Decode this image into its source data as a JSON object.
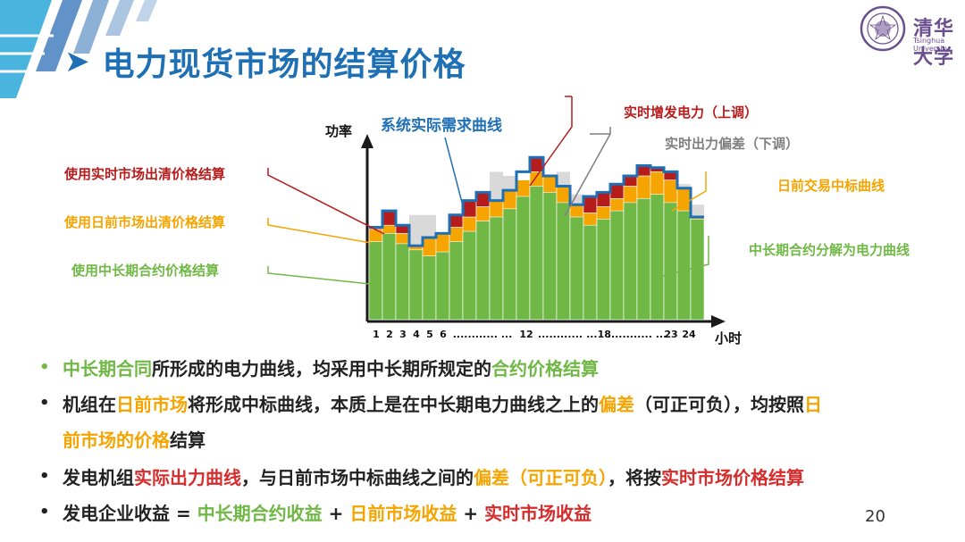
{
  "title": "电力现货市场的结算价格",
  "logo": {
    "name": "清华大学",
    "en": "Tsinghua University"
  },
  "colors": {
    "blue": "#1F6FB5",
    "green": "#70B845",
    "orange": "#F5A400",
    "red": "#B71C1C",
    "gray": "#D9D9D9",
    "text_red": "#D62C2C"
  },
  "chart_data": {
    "type": "bar",
    "ylabel": "功率",
    "xlabel": "小时",
    "tick_labels": [
      "1",
      "2",
      "3",
      "4",
      "5",
      "6",
      "............ ...",
      "12",
      "............",
      "...18",
      "............ ...",
      "23",
      "24"
    ],
    "series": [
      {
        "name": "中长期合约分解为电力曲线",
        "values": [
          38,
          42,
          37,
          34,
          31,
          33,
          38,
          43,
          48,
          50,
          54,
          60,
          65,
          62,
          57,
          50,
          46,
          49,
          53,
          57,
          59,
          61,
          57,
          53,
          49
        ]
      },
      {
        "name": "日前交易中标曲线",
        "values": [
          44,
          46,
          42,
          36,
          40,
          42,
          45,
          50,
          55,
          58,
          63,
          68,
          72,
          70,
          65,
          56,
          52,
          55,
          59,
          65,
          70,
          72,
          68,
          64,
          50
        ]
      },
      {
        "name": "实时增发电力（上调）",
        "values": [
          45,
          53,
          46,
          null,
          null,
          null,
          51,
          58,
          62,
          null,
          null,
          null,
          79,
          null,
          null,
          null,
          60,
          62,
          66,
          70,
          75,
          74,
          72,
          null,
          null
        ]
      },
      {
        "name": "实时出力偏差（下调）",
        "values": [
          null,
          null,
          null,
          51,
          51,
          null,
          null,
          null,
          null,
          72,
          70,
          null,
          null,
          null,
          72,
          61,
          null,
          null,
          null,
          null,
          null,
          null,
          null,
          66,
          56
        ]
      },
      {
        "name": "系统实际需求曲线",
        "values": [
          45,
          53,
          46,
          36,
          40,
          42,
          51,
          58,
          62,
          58,
          63,
          72,
          79,
          70,
          65,
          56,
          60,
          62,
          66,
          70,
          75,
          74,
          72,
          64,
          50
        ]
      }
    ],
    "annotations": [
      "系统实际需求曲线",
      "实时增发电力（上调）",
      "实时出力偏差（下调）",
      "日前交易中标曲线",
      "中长期合约分解为电力曲线",
      "使用实时市场出清价格结算",
      "使用日前市场出清价格结算",
      "使用中长期合约价格结算"
    ]
  },
  "bullets": [
    [
      {
        "t": "中长期合同",
        "c": "green"
      },
      {
        "t": "所形成的电力曲线，均采用中长期所规定的",
        "c": "plain"
      },
      {
        "t": "合约价格结算",
        "c": "green"
      }
    ],
    [
      {
        "t": "机组在",
        "c": "plain"
      },
      {
        "t": "日前市场",
        "c": "orange"
      },
      {
        "t": "将形成中标曲线，本质上是在中长期电力曲线之上的",
        "c": "plain"
      },
      {
        "t": "偏差",
        "c": "orange"
      },
      {
        "t": "（可正可负），均按照",
        "c": "plain"
      },
      {
        "t": "日",
        "c": "orange"
      }
    ],
    [
      {
        "t": "前市场的价格",
        "c": "orange"
      },
      {
        "t": "结算",
        "c": "plain"
      }
    ],
    [
      {
        "t": "发电机组",
        "c": "plain"
      },
      {
        "t": "实际出力曲线",
        "c": "red"
      },
      {
        "t": "，与日前市场中标曲线之间的",
        "c": "plain"
      },
      {
        "t": "偏差（可正可负）",
        "c": "orange"
      },
      {
        "t": "，将按",
        "c": "plain"
      },
      {
        "t": "实时市场价格结算",
        "c": "red"
      }
    ],
    [
      {
        "t": "发电企业收益 = ",
        "c": "plain"
      },
      {
        "t": "中长期合约收益",
        "c": "green"
      },
      {
        "t": " + ",
        "c": "plain"
      },
      {
        "t": "日前市场收益",
        "c": "orange"
      },
      {
        "t": " + ",
        "c": "plain"
      },
      {
        "t": "实时市场收益",
        "c": "red"
      }
    ]
  ],
  "bullet_dot": "•",
  "page_number": "20"
}
